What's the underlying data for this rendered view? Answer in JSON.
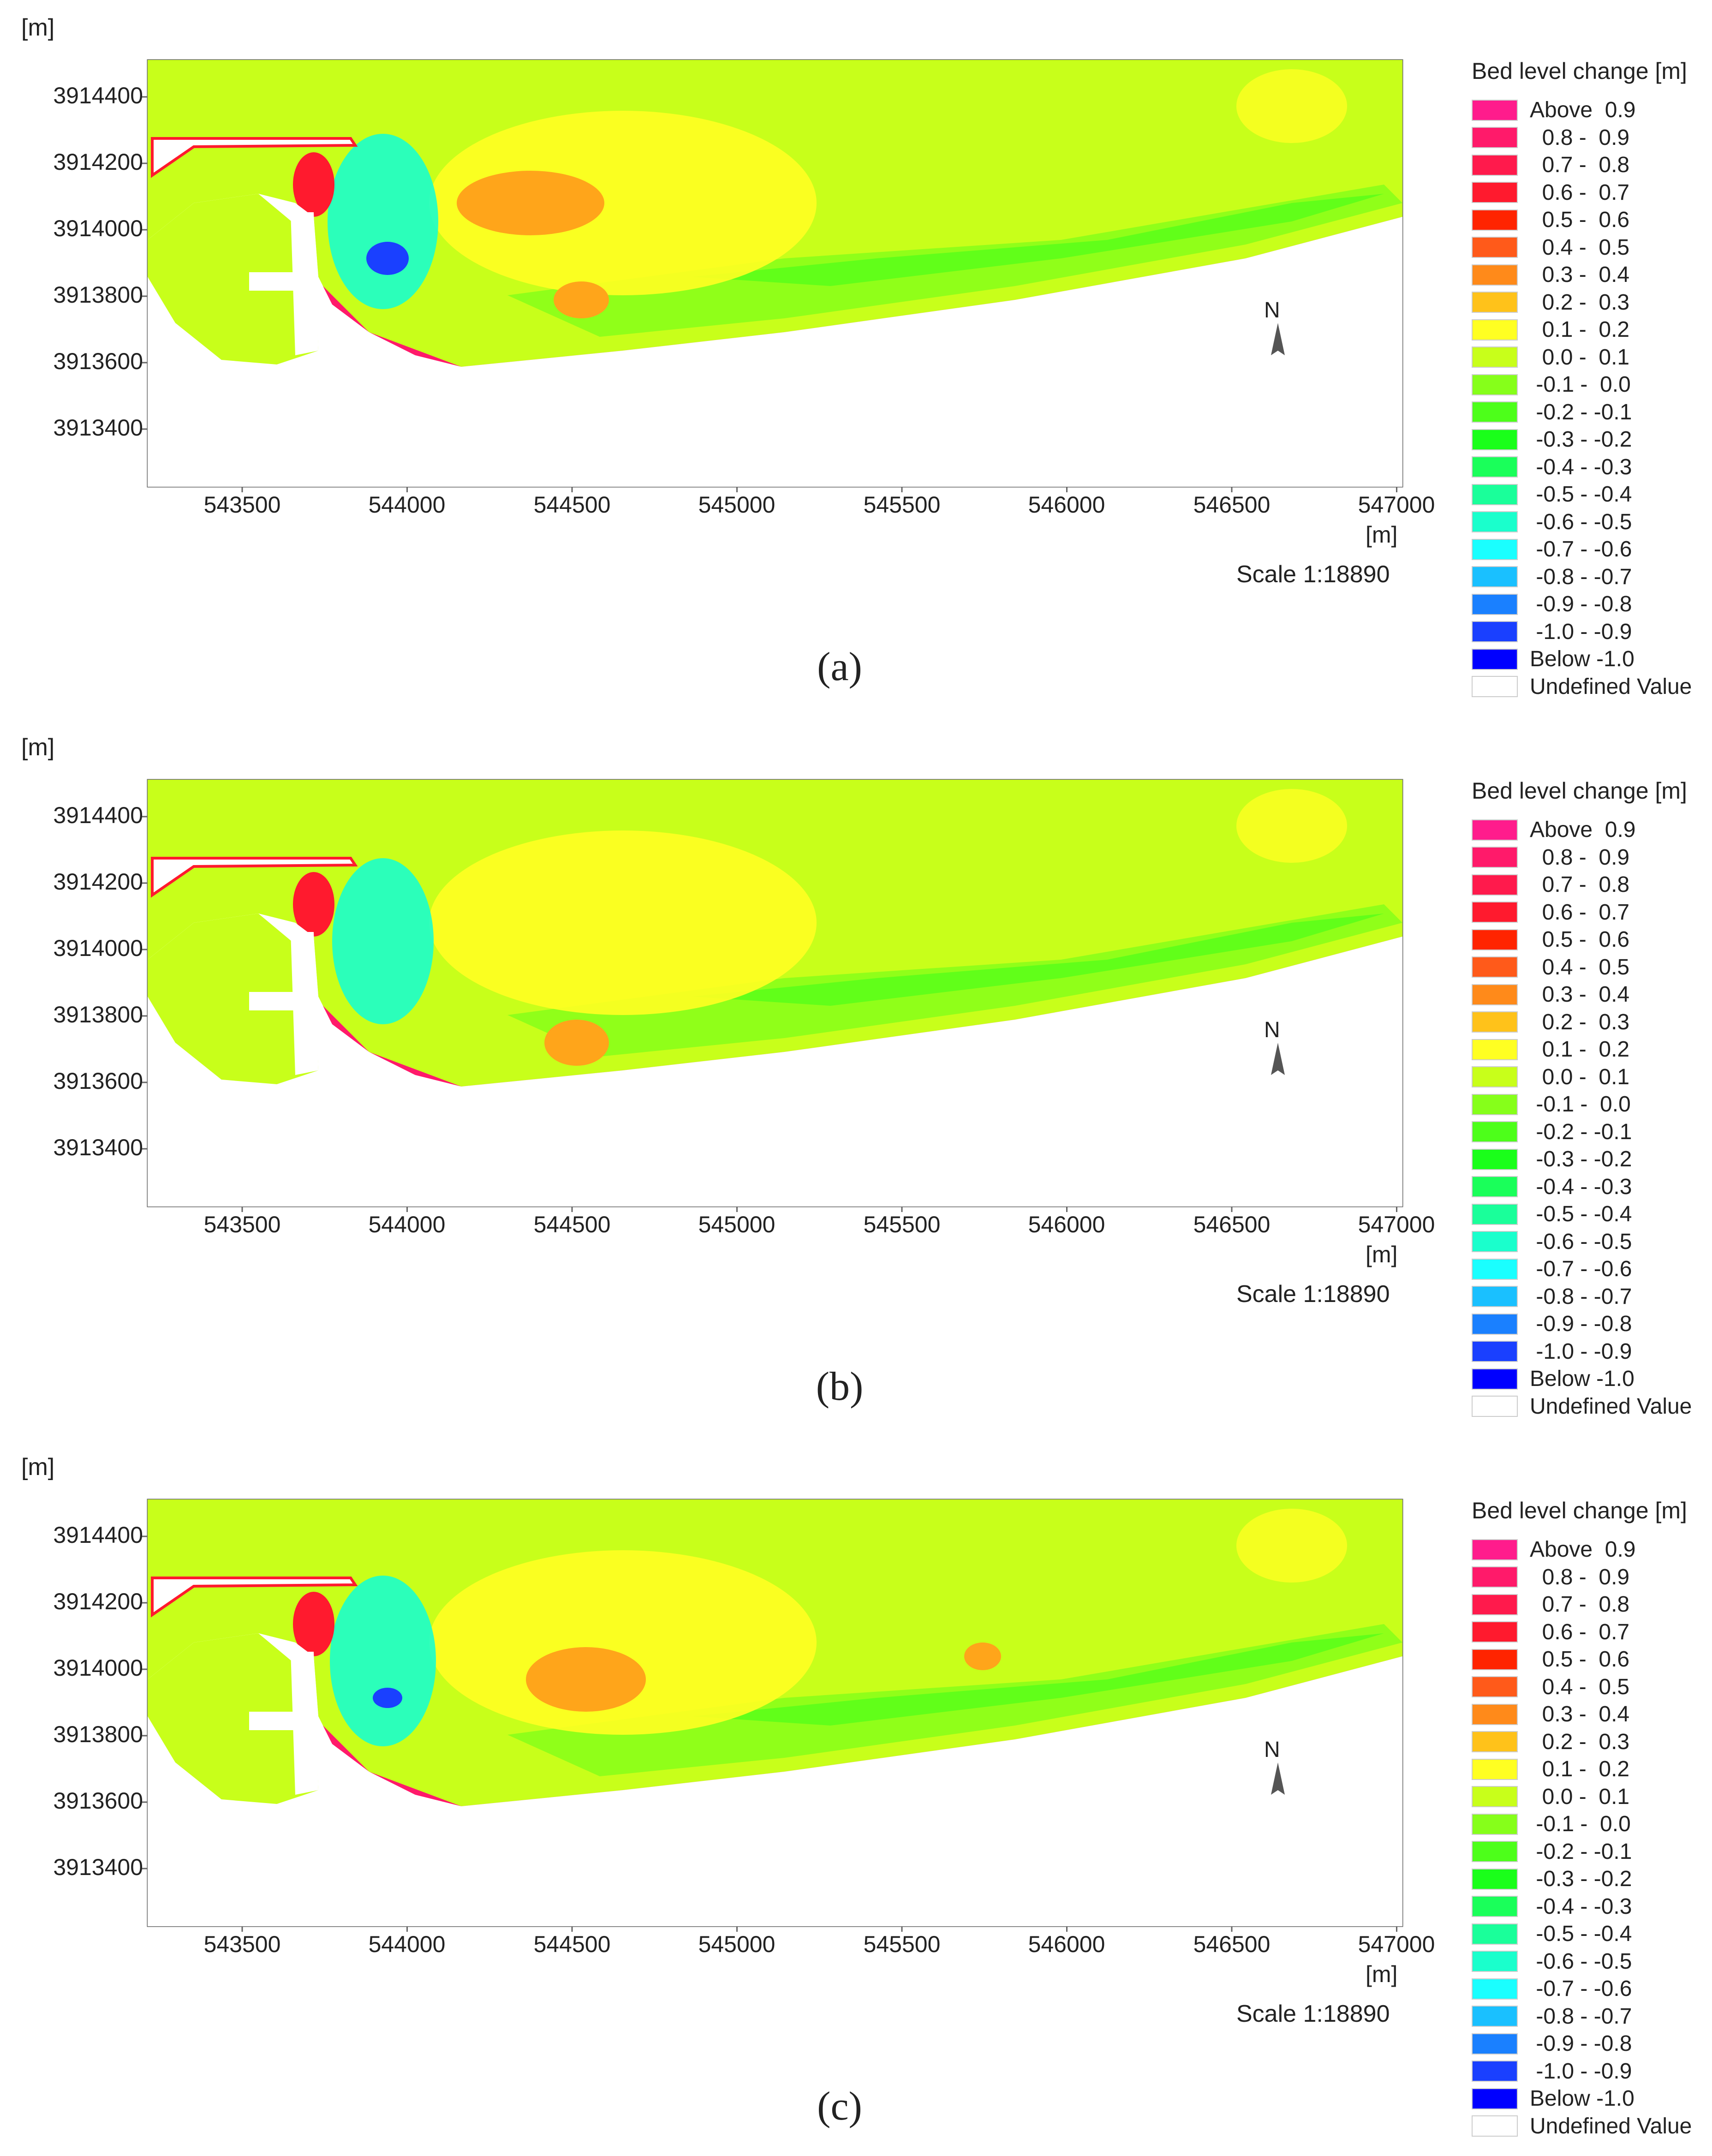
{
  "figure": {
    "y_unit": "[m]",
    "x_unit": "[m]",
    "scale": "Scale 1:18890",
    "north": "N",
    "y_ticks": [
      "3914400",
      "3914200",
      "3914000",
      "3913800",
      "3913600",
      "3913400"
    ],
    "x_ticks": [
      "543500",
      "544000",
      "544500",
      "545000",
      "545500",
      "546000",
      "546500",
      "547000"
    ],
    "legend": {
      "title": "Bed level change [m]",
      "items": [
        {
          "label": "Above  0.9",
          "color": "#ff1c8c"
        },
        {
          "label": "  0.8 -  0.9",
          "color": "#ff1a6a"
        },
        {
          "label": "  0.7 -  0.8",
          "color": "#ff1a4c"
        },
        {
          "label": "  0.6 -  0.7",
          "color": "#ff1a2e"
        },
        {
          "label": "  0.5 -  0.6",
          "color": "#ff2400"
        },
        {
          "label": "  0.4 -  0.5",
          "color": "#ff5a1a"
        },
        {
          "label": "  0.3 -  0.4",
          "color": "#ff8a1a"
        },
        {
          "label": "  0.2 -  0.3",
          "color": "#ffc21a"
        },
        {
          "label": "  0.1 -  0.2",
          "color": "#ffff22"
        },
        {
          "label": "  0.0 -  0.1",
          "color": "#c8ff1a"
        },
        {
          "label": " -0.1 -  0.0",
          "color": "#86ff1a"
        },
        {
          "label": " -0.2 - -0.1",
          "color": "#4dff1a"
        },
        {
          "label": " -0.3 - -0.2",
          "color": "#1aff1a"
        },
        {
          "label": " -0.4 - -0.3",
          "color": "#1aff5a"
        },
        {
          "label": " -0.5 - -0.4",
          "color": "#1aff9a"
        },
        {
          "label": " -0.6 - -0.5",
          "color": "#1affcc"
        },
        {
          "label": " -0.7 - -0.6",
          "color": "#1affff"
        },
        {
          "label": " -0.8 - -0.7",
          "color": "#1ac0ff"
        },
        {
          "label": " -0.9 - -0.8",
          "color": "#1a80ff"
        },
        {
          "label": " -1.0 - -0.9",
          "color": "#1a40ff"
        },
        {
          "label": "Below -1.0",
          "color": "#0000ff"
        },
        {
          "label": "Undefined Value",
          "color": "#ffffff"
        }
      ]
    }
  },
  "panels": [
    {
      "label": "(a)"
    },
    {
      "label": "(b)"
    },
    {
      "label": "(c)"
    }
  ],
  "colors": {
    "base": "#c8ff1a",
    "green": "#86ff1a",
    "deepgreen": "#4dff1a",
    "yellow": "#ffff22",
    "orange": "#ffa51a",
    "red": "#ff1a2e",
    "pink": "#ff1a6a",
    "cyan": "#1affcc",
    "blue": "#1a40ff",
    "land": "#ffffff",
    "frame": "#666666"
  }
}
